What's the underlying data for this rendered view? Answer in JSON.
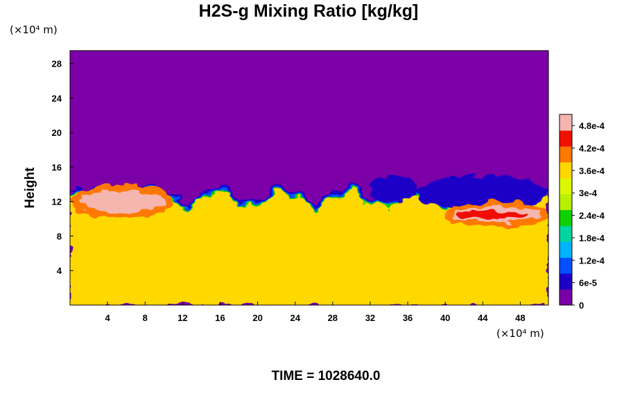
{
  "chart_data": {
    "type": "heatmap",
    "title": "H2S-g Mixing Ratio [kg/kg]",
    "xlabel": "",
    "ylabel": "Height",
    "x_unit": "(×10⁴ m)",
    "y_unit": "(×10⁴ m)",
    "xlim": [
      0,
      51
    ],
    "ylim": [
      0,
      29.5
    ],
    "x_ticks": [
      4,
      8,
      12,
      16,
      20,
      24,
      28,
      32,
      36,
      40,
      44,
      48
    ],
    "x_tick_labels": [
      "4",
      "8",
      "12",
      "16",
      "20",
      "24",
      "28",
      "32",
      "36",
      "40",
      "44",
      "48"
    ],
    "y_ticks": [
      4,
      8,
      12,
      16,
      20,
      24,
      28
    ],
    "y_tick_labels": [
      "4",
      "8",
      "12",
      "16",
      "20",
      "24",
      "28"
    ],
    "colorbar": {
      "min": 0,
      "max": 0.00051,
      "tick_values": [
        0,
        6e-05,
        0.00012,
        0.00018,
        0.00024,
        0.0003,
        0.00036,
        0.00042,
        0.00048
      ],
      "tick_labels": [
        "0",
        "6e-5",
        "1.2e-4",
        "1.8e-4",
        "2.4e-4",
        "3e-4",
        "3.6e-4",
        "4.2e-4",
        "4.8e-4"
      ],
      "colors": [
        "#7c00a8",
        "#1c00c8",
        "#0050ff",
        "#00b4ff",
        "#00d4a0",
        "#10d000",
        "#b8f000",
        "#dcf800",
        "#ffd800",
        "#ff7800",
        "#f01000",
        "#f5b6b0"
      ]
    },
    "background_value": 0,
    "field_description": "Upper layer near 0; lower layer about 3.5e-4; turbulent interface near 12-15 with peaks above 4.8e-4 on the left boundary",
    "lower_layer_value": 0.00035,
    "interface_height": 13.5,
    "high_concentration_regions": [
      {
        "x": [
          0,
          11
        ],
        "y": [
          10,
          14
        ],
        "value": 0.0005
      },
      {
        "x": [
          40,
          51
        ],
        "y": [
          9,
          12
        ],
        "value": 0.00045
      }
    ],
    "low_concentration_eddies": [
      {
        "x": [
          32,
          37
        ],
        "y": [
          12,
          15
        ],
        "value": 5e-05
      },
      {
        "x": [
          37,
          51
        ],
        "y": [
          11,
          15
        ],
        "value": 8e-05
      }
    ]
  },
  "time_label": "TIME = 1028640.0"
}
